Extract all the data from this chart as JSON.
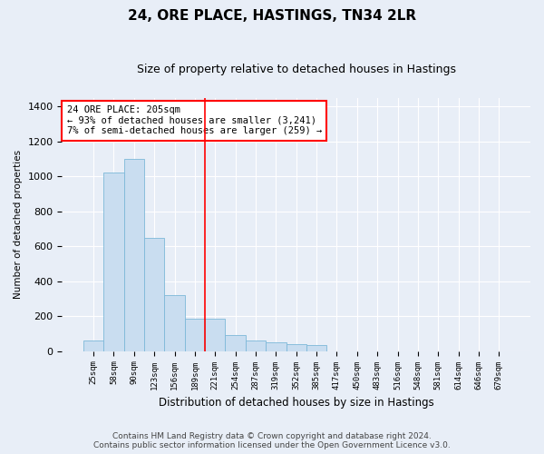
{
  "title": "24, ORE PLACE, HASTINGS, TN34 2LR",
  "subtitle": "Size of property relative to detached houses in Hastings",
  "xlabel": "Distribution of detached houses by size in Hastings",
  "ylabel": "Number of detached properties",
  "footer_line1": "Contains HM Land Registry data © Crown copyright and database right 2024.",
  "footer_line2": "Contains public sector information licensed under the Open Government Licence v3.0.",
  "bar_color": "#c9ddf0",
  "bar_edgecolor": "#7db8d8",
  "background_color": "#e8eef7",
  "annotation_text": "24 ORE PLACE: 205sqm\n← 93% of detached houses are smaller (3,241)\n7% of semi-detached houses are larger (259) →",
  "vline_color": "red",
  "vline_pos": 5.5,
  "categories": [
    "25sqm",
    "58sqm",
    "90sqm",
    "123sqm",
    "156sqm",
    "189sqm",
    "221sqm",
    "254sqm",
    "287sqm",
    "319sqm",
    "352sqm",
    "385sqm",
    "417sqm",
    "450sqm",
    "483sqm",
    "516sqm",
    "548sqm",
    "581sqm",
    "614sqm",
    "646sqm",
    "679sqm"
  ],
  "values": [
    60,
    1020,
    1100,
    650,
    320,
    185,
    185,
    90,
    60,
    50,
    40,
    35,
    0,
    0,
    0,
    0,
    0,
    0,
    0,
    0,
    0
  ],
  "ylim": [
    0,
    1450
  ],
  "yticks": [
    0,
    200,
    400,
    600,
    800,
    1000,
    1200,
    1400
  ],
  "grid_color": "#ffffff",
  "annotation_box_color": "#ffffff",
  "annotation_box_edgecolor": "red",
  "figsize": [
    6.0,
    5.0
  ],
  "dpi": 100
}
